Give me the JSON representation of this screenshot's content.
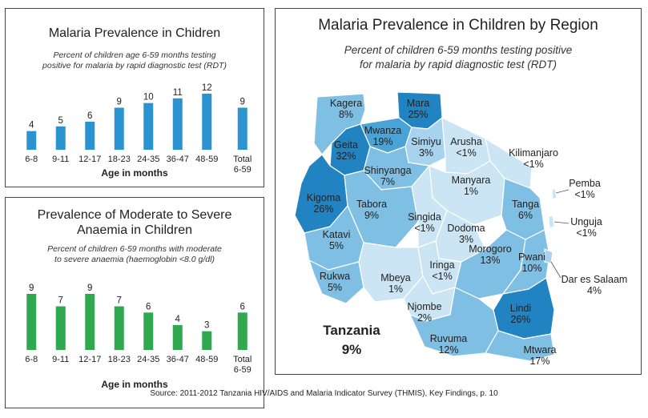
{
  "source": "Source: 2011-2012 Tanzania HIV/AIDS and Malaria Indicator Survey (THMIS), Key Findings, p. 10",
  "chart_data": [
    {
      "type": "bar",
      "title": "Malaria Prevalence in Chidren",
      "subtitle_lines": [
        "Percent of children age 6-59 months testing",
        "positive for malaria by rapid diagnostic test (RDT)"
      ],
      "xlabel": "Age in months",
      "ylabel": "",
      "categories": [
        [
          "6-8"
        ],
        [
          "9-11"
        ],
        [
          "12-17"
        ],
        [
          "18-23"
        ],
        [
          "24-35"
        ],
        [
          "36-47"
        ],
        [
          "48-59"
        ],
        [
          "Total",
          "6-59"
        ]
      ],
      "values": [
        4,
        5,
        6,
        9,
        10,
        11,
        12,
        9
      ],
      "color": "#2b93cf",
      "ylim": [
        0,
        12
      ],
      "grid": false
    },
    {
      "type": "bar",
      "title_lines": [
        "Prevalence of Moderate to Severe",
        "Anaemia in Children"
      ],
      "subtitle_lines": [
        "Percent of children 6-59 months with moderate",
        "to severe anaemia (haemoglobin <8.0 g/dl)"
      ],
      "xlabel": "Age in months",
      "ylabel": "",
      "categories": [
        [
          "6-8"
        ],
        [
          "9-11"
        ],
        [
          "12-17"
        ],
        [
          "18-23"
        ],
        [
          "24-35"
        ],
        [
          "36-47"
        ],
        [
          "48-59"
        ],
        [
          "Total",
          "6-59"
        ]
      ],
      "values": [
        9,
        7,
        9,
        7,
        6,
        4,
        3,
        6
      ],
      "color": "#2fa84f",
      "ylim": [
        0,
        9
      ],
      "grid": false
    },
    {
      "type": "map",
      "title": "Malaria Prevalence in Children by Region",
      "subtitle_lines": [
        "Percent of children 6-59 months testing positive",
        "for malaria by rapid diagnostic test (RDT)"
      ],
      "national_label": "Tanzania",
      "national_value": "9%",
      "regions": [
        {
          "name": "Kagera",
          "value": "8%"
        },
        {
          "name": "Mara",
          "value": "25%"
        },
        {
          "name": "Mwanza",
          "value": "19%"
        },
        {
          "name": "Geita",
          "value": "32%"
        },
        {
          "name": "Simiyu",
          "value": "3%"
        },
        {
          "name": "Arusha",
          "value": "<1%"
        },
        {
          "name": "Kilimanjaro",
          "value": "<1%"
        },
        {
          "name": "Shinyanga",
          "value": "7%"
        },
        {
          "name": "Kigoma",
          "value": "26%"
        },
        {
          "name": "Tabora",
          "value": "9%"
        },
        {
          "name": "Manyara",
          "value": "1%"
        },
        {
          "name": "Singida",
          "value": "<1%"
        },
        {
          "name": "Dodoma",
          "value": "3%"
        },
        {
          "name": "Tanga",
          "value": "6%"
        },
        {
          "name": "Pemba",
          "value": "<1%"
        },
        {
          "name": "Unguja",
          "value": "<1%"
        },
        {
          "name": "Katavi",
          "value": "5%"
        },
        {
          "name": "Rukwa",
          "value": "5%"
        },
        {
          "name": "Mbeya",
          "value": "1%"
        },
        {
          "name": "Iringa",
          "value": "<1%"
        },
        {
          "name": "Morogoro",
          "value": "13%"
        },
        {
          "name": "Pwani",
          "value": "10%"
        },
        {
          "name": "Dar es Salaam",
          "value": "4%"
        },
        {
          "name": "Njombe",
          "value": "2%"
        },
        {
          "name": "Lindi",
          "value": "26%"
        },
        {
          "name": "Ruvuma",
          "value": "12%"
        },
        {
          "name": "Mtwara",
          "value": "17%"
        }
      ],
      "colors": {
        "high": "#2283c2",
        "mid_high": "#4aa3d6",
        "mid": "#7fbfe3",
        "low": "#a8d3ee",
        "very_low": "#cbe5f5"
      }
    }
  ]
}
